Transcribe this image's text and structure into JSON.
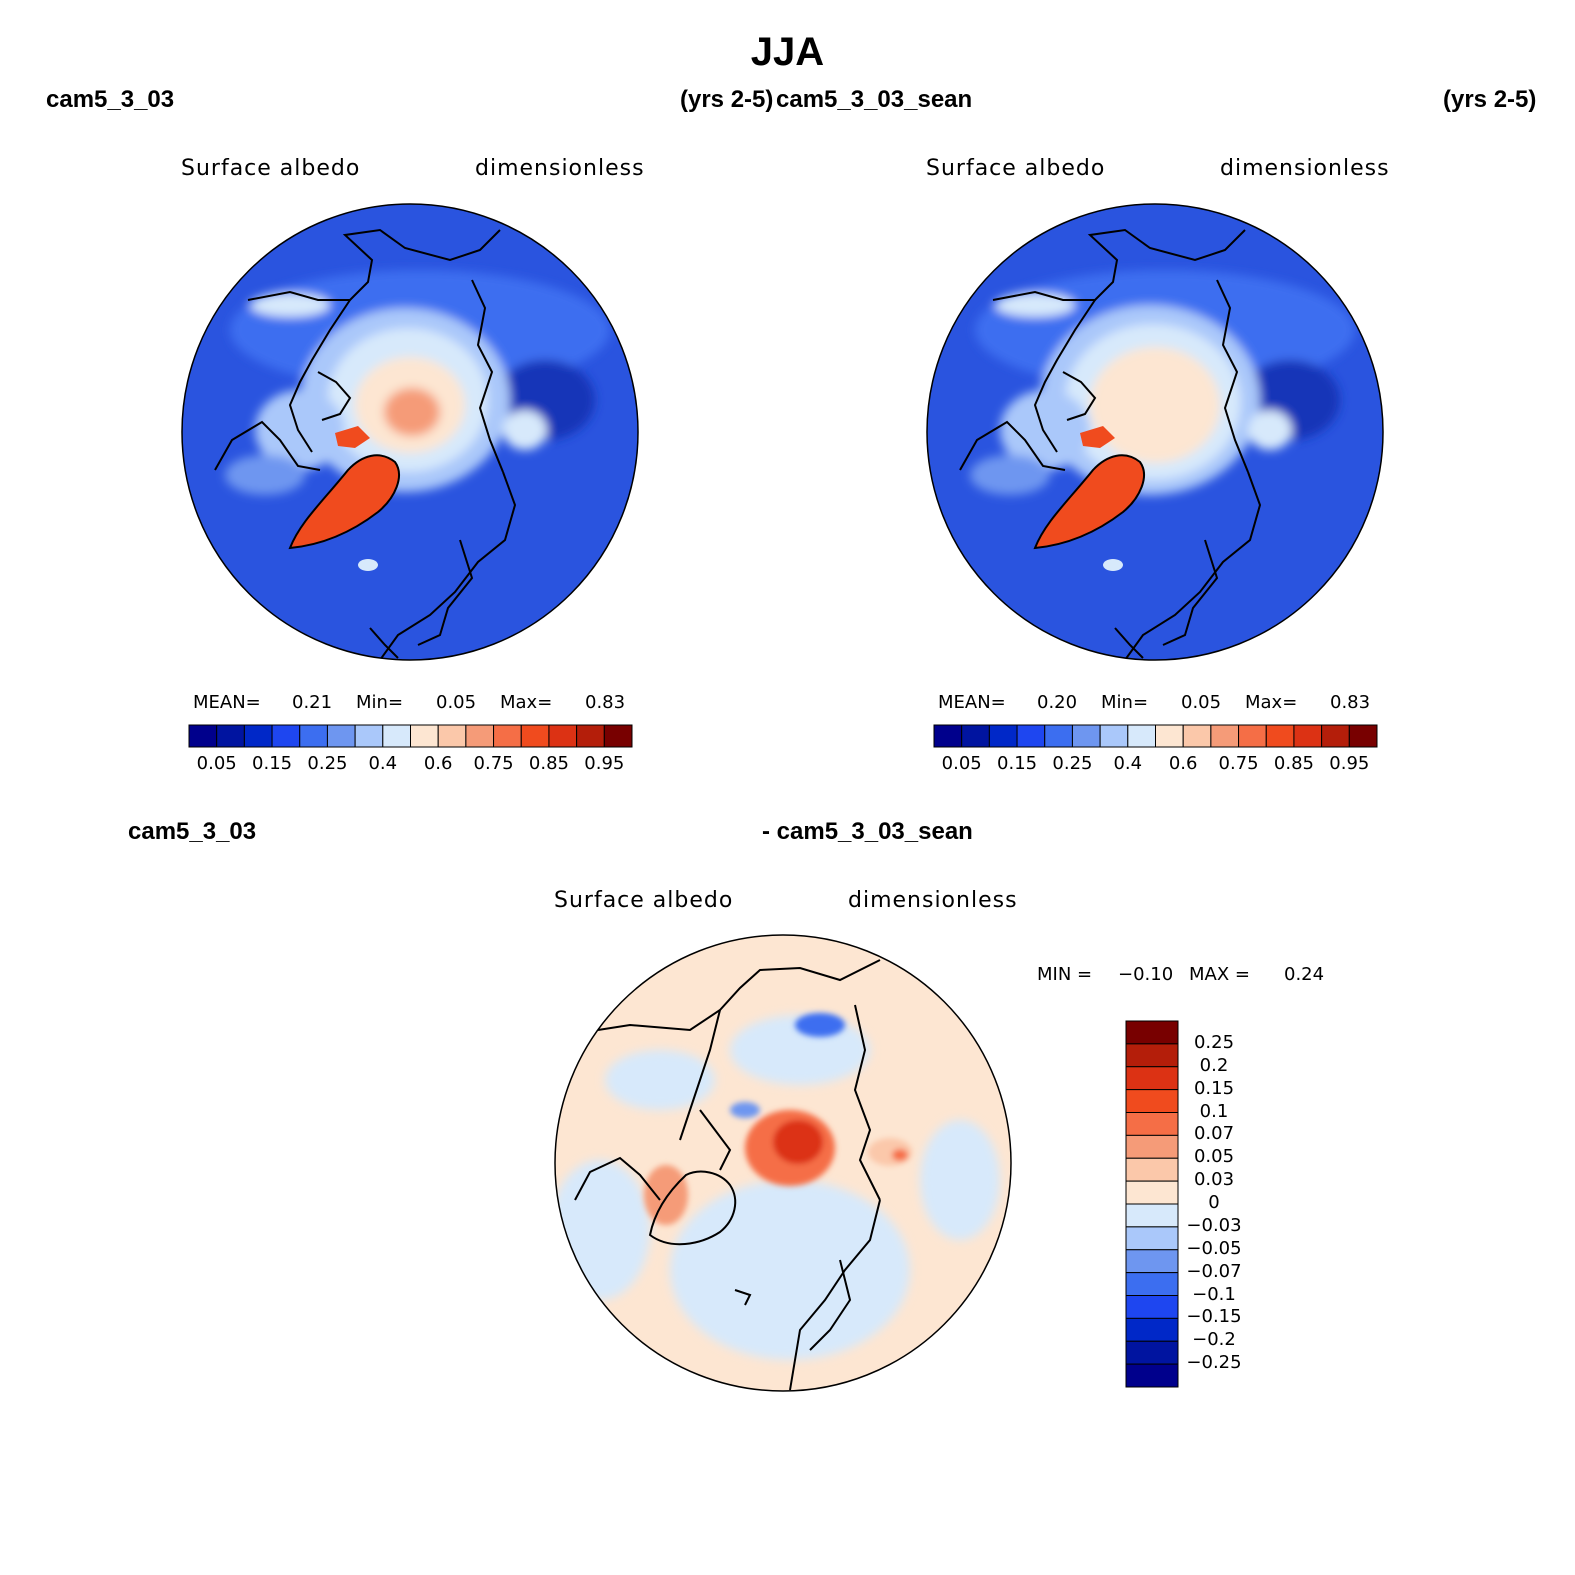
{
  "header": {
    "title": "JJA",
    "case1_name": "cam5_3_03",
    "case1_years": "(yrs 2-5)",
    "case2_name": "cam5_3_03_sean",
    "case2_years": "(yrs 2-5)",
    "diff_case1": "cam5_3_03",
    "diff_case2": "- cam5_3_03_sean"
  },
  "panels": [
    {
      "id": "case1",
      "variable": "Surface albedo",
      "units": "dimensionless",
      "stats": {
        "mean_label": "MEAN=",
        "mean": "0.21",
        "min_label": "Min=",
        "min": "0.05",
        "max_label": "Max=",
        "max": "0.83"
      }
    },
    {
      "id": "case2",
      "variable": "Surface albedo",
      "units": "dimensionless",
      "stats": {
        "mean_label": "MEAN=",
        "mean": "0.20",
        "min_label": "Min=",
        "min": "0.05",
        "max_label": "Max=",
        "max": "0.83"
      }
    },
    {
      "id": "diff",
      "variable": "Surface albedo",
      "units": "dimensionless",
      "stats": {
        "min_label": "MIN =",
        "min": "−0.10",
        "max_label": "MAX =",
        "max": "0.24"
      }
    }
  ],
  "chart_data": [
    {
      "type": "heatmap",
      "projection": "north polar stereographic",
      "title": "Surface albedo",
      "units": "dimensionless",
      "case": "cam5_3_03 (yrs 2-5)",
      "mean": 0.21,
      "min": 0.05,
      "max": 0.83,
      "colorbar_levels": [
        0.05,
        0.1,
        0.15,
        0.2,
        0.25,
        0.3,
        0.4,
        0.5,
        0.6,
        0.7,
        0.75,
        0.8,
        0.85,
        0.9,
        0.95
      ],
      "colorbar_tick_labels": [
        "0.05",
        "0.15",
        "0.25",
        "0.4",
        "0.6",
        "0.75",
        "0.85",
        "0.95"
      ],
      "colorbar_orientation": "horizontal"
    },
    {
      "type": "heatmap",
      "projection": "north polar stereographic",
      "title": "Surface albedo",
      "units": "dimensionless",
      "case": "cam5_3_03_sean (yrs 2-5)",
      "mean": 0.2,
      "min": 0.05,
      "max": 0.83,
      "colorbar_levels": [
        0.05,
        0.1,
        0.15,
        0.2,
        0.25,
        0.3,
        0.4,
        0.5,
        0.6,
        0.7,
        0.75,
        0.8,
        0.85,
        0.9,
        0.95
      ],
      "colorbar_tick_labels": [
        "0.05",
        "0.15",
        "0.25",
        "0.4",
        "0.6",
        "0.75",
        "0.85",
        "0.95"
      ],
      "colorbar_orientation": "horizontal"
    },
    {
      "type": "heatmap",
      "projection": "north polar stereographic",
      "title": "Surface albedo",
      "units": "dimensionless",
      "case": "cam5_3_03 - cam5_3_03_sean",
      "min": -0.1,
      "max": 0.24,
      "colorbar_levels": [
        0.25,
        0.2,
        0.15,
        0.1,
        0.07,
        0.05,
        0.03,
        0,
        -0.03,
        -0.05,
        -0.07,
        -0.1,
        -0.15,
        -0.2,
        -0.25
      ],
      "colorbar_tick_labels": [
        "0.25",
        "0.2",
        "0.15",
        "0.1",
        "0.07",
        "0.05",
        "0.03",
        "0",
        "−0.03",
        "−0.05",
        "−0.07",
        "−0.1",
        "−0.15",
        "−0.2",
        "−0.25"
      ],
      "colorbar_orientation": "vertical"
    }
  ],
  "colors": {
    "palette_16": [
      "#00008c",
      "#0014a0",
      "#0028c8",
      "#1e46f0",
      "#3c6ef0",
      "#6e96f0",
      "#aac8fa",
      "#d7e9fb",
      "#fde6d2",
      "#fbc8aa",
      "#f59b78",
      "#f56e46",
      "#f04b1e",
      "#dc3214",
      "#b41e0a",
      "#780000"
    ],
    "ocean_blue": "#2a54df",
    "deep_blue": "#1434b8"
  }
}
